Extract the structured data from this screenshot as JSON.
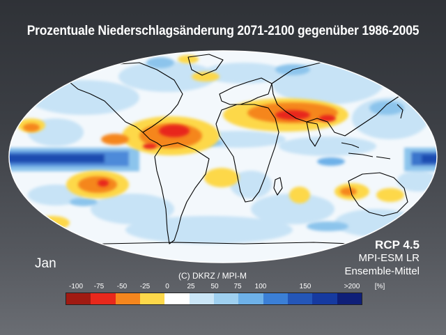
{
  "title": "Prozentuale Niederschlagsänderung 2071-2100 gegenüber 1986-2005",
  "scenario": "RCP 4.5",
  "model": "MPI-ESM LR",
  "ensemble": "Ensemble-Mittel",
  "month": "Jan",
  "credit": "(C) DKRZ / MPI-M",
  "legend": {
    "labels": [
      "-100",
      "-75",
      "-50",
      "-25",
      "0",
      "25",
      "50",
      "75",
      "100",
      "150",
      ">200",
      "[%]"
    ],
    "colors": [
      "#a01a12",
      "#e8281c",
      "#f5861e",
      "#fdd84a",
      "#ffffff",
      "#cbe6f7",
      "#9fd0f0",
      "#6eb1e8",
      "#3b7fd6",
      "#2456b8",
      "#163aa0",
      "#0f1f78"
    ]
  }
}
